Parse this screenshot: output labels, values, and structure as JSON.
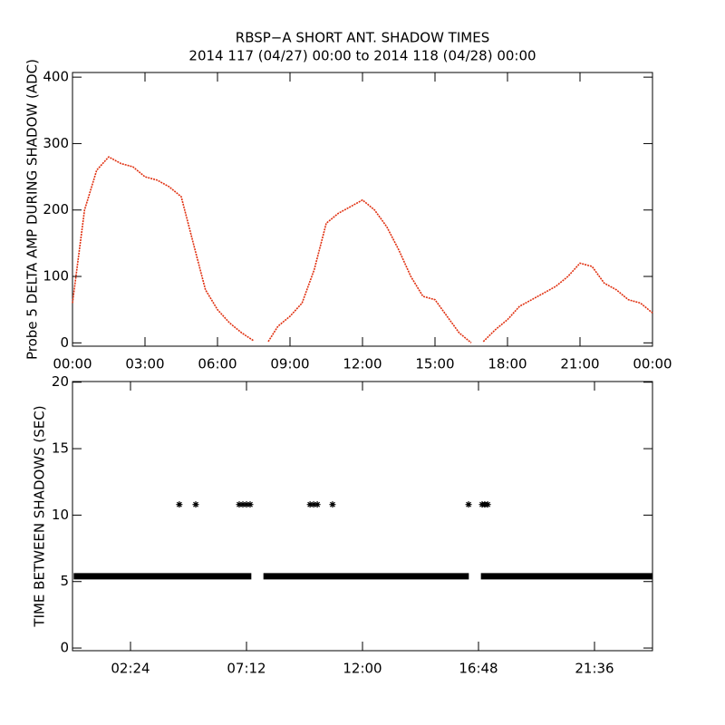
{
  "chart_data": [
    {
      "type": "line",
      "title": "RBSP−A SHORT ANT. SHADOW TIMES",
      "subtitle": "2014 117 (04/27) 00:00 to 2014 118 (04/28) 00:00",
      "ylabel": "Probe 5 DELTA AMP DURING SHADOW (ADC)",
      "xlim": [
        0,
        24
      ],
      "xticks": [
        {
          "value": 0,
          "label": "00:00"
        },
        {
          "value": 3,
          "label": "03:00"
        },
        {
          "value": 6,
          "label": "06:00"
        },
        {
          "value": 9,
          "label": "09:00"
        },
        {
          "value": 12,
          "label": "12:00"
        },
        {
          "value": 15,
          "label": "15:00"
        },
        {
          "value": 18,
          "label": "18:00"
        },
        {
          "value": 21,
          "label": "21:00"
        },
        {
          "value": 24,
          "label": "00:00"
        }
      ],
      "ylim": [
        -5,
        407
      ],
      "yticks": [
        0,
        100,
        200,
        300,
        400
      ],
      "series": [
        {
          "color": "#e03010",
          "x": [
            0,
            0.5,
            1,
            1.5,
            2,
            2.5,
            3,
            3.5,
            4,
            4.5,
            5,
            5.5,
            6,
            6.5,
            7,
            7.5,
            7.75,
            8.1,
            8.5,
            9,
            9.5,
            10,
            10.5,
            11,
            11.5,
            12,
            12.5,
            13,
            13.5,
            14,
            14.5,
            15,
            15.5,
            16,
            16.5,
            16.75,
            17,
            17.5,
            18,
            18.5,
            19,
            19.5,
            20,
            20.5,
            21,
            21.5,
            22,
            22.5,
            23,
            23.5,
            24
          ],
          "values": [
            60,
            200,
            260,
            280,
            270,
            265,
            250,
            245,
            235,
            220,
            150,
            80,
            50,
            30,
            15,
            3,
            null,
            2,
            25,
            40,
            60,
            110,
            180,
            195,
            205,
            215,
            200,
            175,
            140,
            100,
            70,
            65,
            40,
            15,
            0,
            null,
            2,
            20,
            35,
            55,
            65,
            75,
            85,
            100,
            120,
            115,
            90,
            80,
            65,
            60,
            45
          ]
        }
      ]
    },
    {
      "type": "scatter",
      "ylabel": "TIME BETWEEN SHADOWS (SEC)",
      "xlim": [
        0,
        24
      ],
      "xticks": [
        {
          "value": 2.4,
          "label": "02:24"
        },
        {
          "value": 7.2,
          "label": "07:12"
        },
        {
          "value": 12,
          "label": "12:00"
        },
        {
          "value": 16.8,
          "label": "16:48"
        },
        {
          "value": 21.6,
          "label": "21:36"
        }
      ],
      "ylim": [
        -0.2,
        20.05
      ],
      "yticks": [
        0,
        5,
        10,
        15,
        20
      ],
      "color": "#000000",
      "segments": [
        {
          "x": [
            0.05,
            7.4
          ],
          "y": 5.4
        },
        {
          "x": [
            7.9,
            16.4
          ],
          "y": 5.4
        },
        {
          "x": [
            16.9,
            24
          ],
          "y": 5.4
        }
      ],
      "x": [
        4.42,
        5.1,
        6.9,
        7.05,
        7.2,
        7.35,
        9.83,
        9.98,
        10.13,
        10.76,
        16.39,
        16.95,
        17.06,
        17.18
      ],
      "y": [
        10.8,
        10.8,
        10.8,
        10.8,
        10.8,
        10.8,
        10.8,
        10.8,
        10.8,
        10.8,
        10.8,
        10.8,
        10.8,
        10.8
      ]
    }
  ]
}
